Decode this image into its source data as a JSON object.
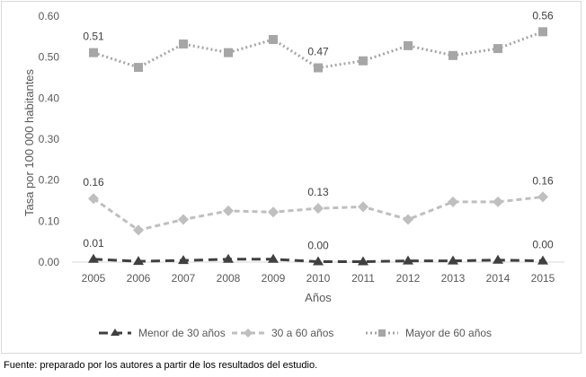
{
  "chart_data": {
    "type": "line",
    "title": "",
    "xlabel": "Años",
    "ylabel": "Tasa por 100 000 habitantes",
    "x": [
      "2005",
      "2006",
      "2007",
      "2008",
      "2009",
      "2010",
      "2011",
      "2012",
      "2013",
      "2014",
      "2015"
    ],
    "ylim": [
      0,
      0.6
    ],
    "yticks": [
      "0.00",
      "0.10",
      "0.20",
      "0.30",
      "0.40",
      "0.50",
      "0.60"
    ],
    "grid": false,
    "legend_position": "bottom",
    "series": [
      {
        "name": "Menor de 30 años",
        "values": [
          0.007,
          0.002,
          0.004,
          0.007,
          0.007,
          0.001,
          0.001,
          0.003,
          0.003,
          0.005,
          0.003
        ],
        "color": "#404040",
        "marker": "triangle",
        "dash": "long-dash",
        "labels": [
          {
            "index": 0,
            "text": "0.01"
          },
          {
            "index": 5,
            "text": "0.00"
          },
          {
            "index": 10,
            "text": "0.00"
          }
        ]
      },
      {
        "name": "30 a 60 años",
        "values": [
          0.155,
          0.078,
          0.104,
          0.125,
          0.122,
          0.131,
          0.135,
          0.104,
          0.147,
          0.147,
          0.159
        ],
        "color": "#bfbfbf",
        "marker": "diamond",
        "dash": "dash",
        "labels": [
          {
            "index": 0,
            "text": "0.16"
          },
          {
            "index": 5,
            "text": "0.13"
          },
          {
            "index": 10,
            "text": "0.16"
          }
        ]
      },
      {
        "name": "Mayor de 60 años",
        "values": [
          0.511,
          0.475,
          0.532,
          0.511,
          0.543,
          0.474,
          0.491,
          0.528,
          0.504,
          0.521,
          0.562
        ],
        "color": "#a6a6a6",
        "marker": "square",
        "dash": "dot",
        "labels": [
          {
            "index": 0,
            "text": "0.51"
          },
          {
            "index": 5,
            "text": "0.47"
          },
          {
            "index": 10,
            "text": "0.56"
          }
        ]
      }
    ]
  },
  "source_note": "Fuente: preparado por los autores a partir de los resultados del estudio."
}
